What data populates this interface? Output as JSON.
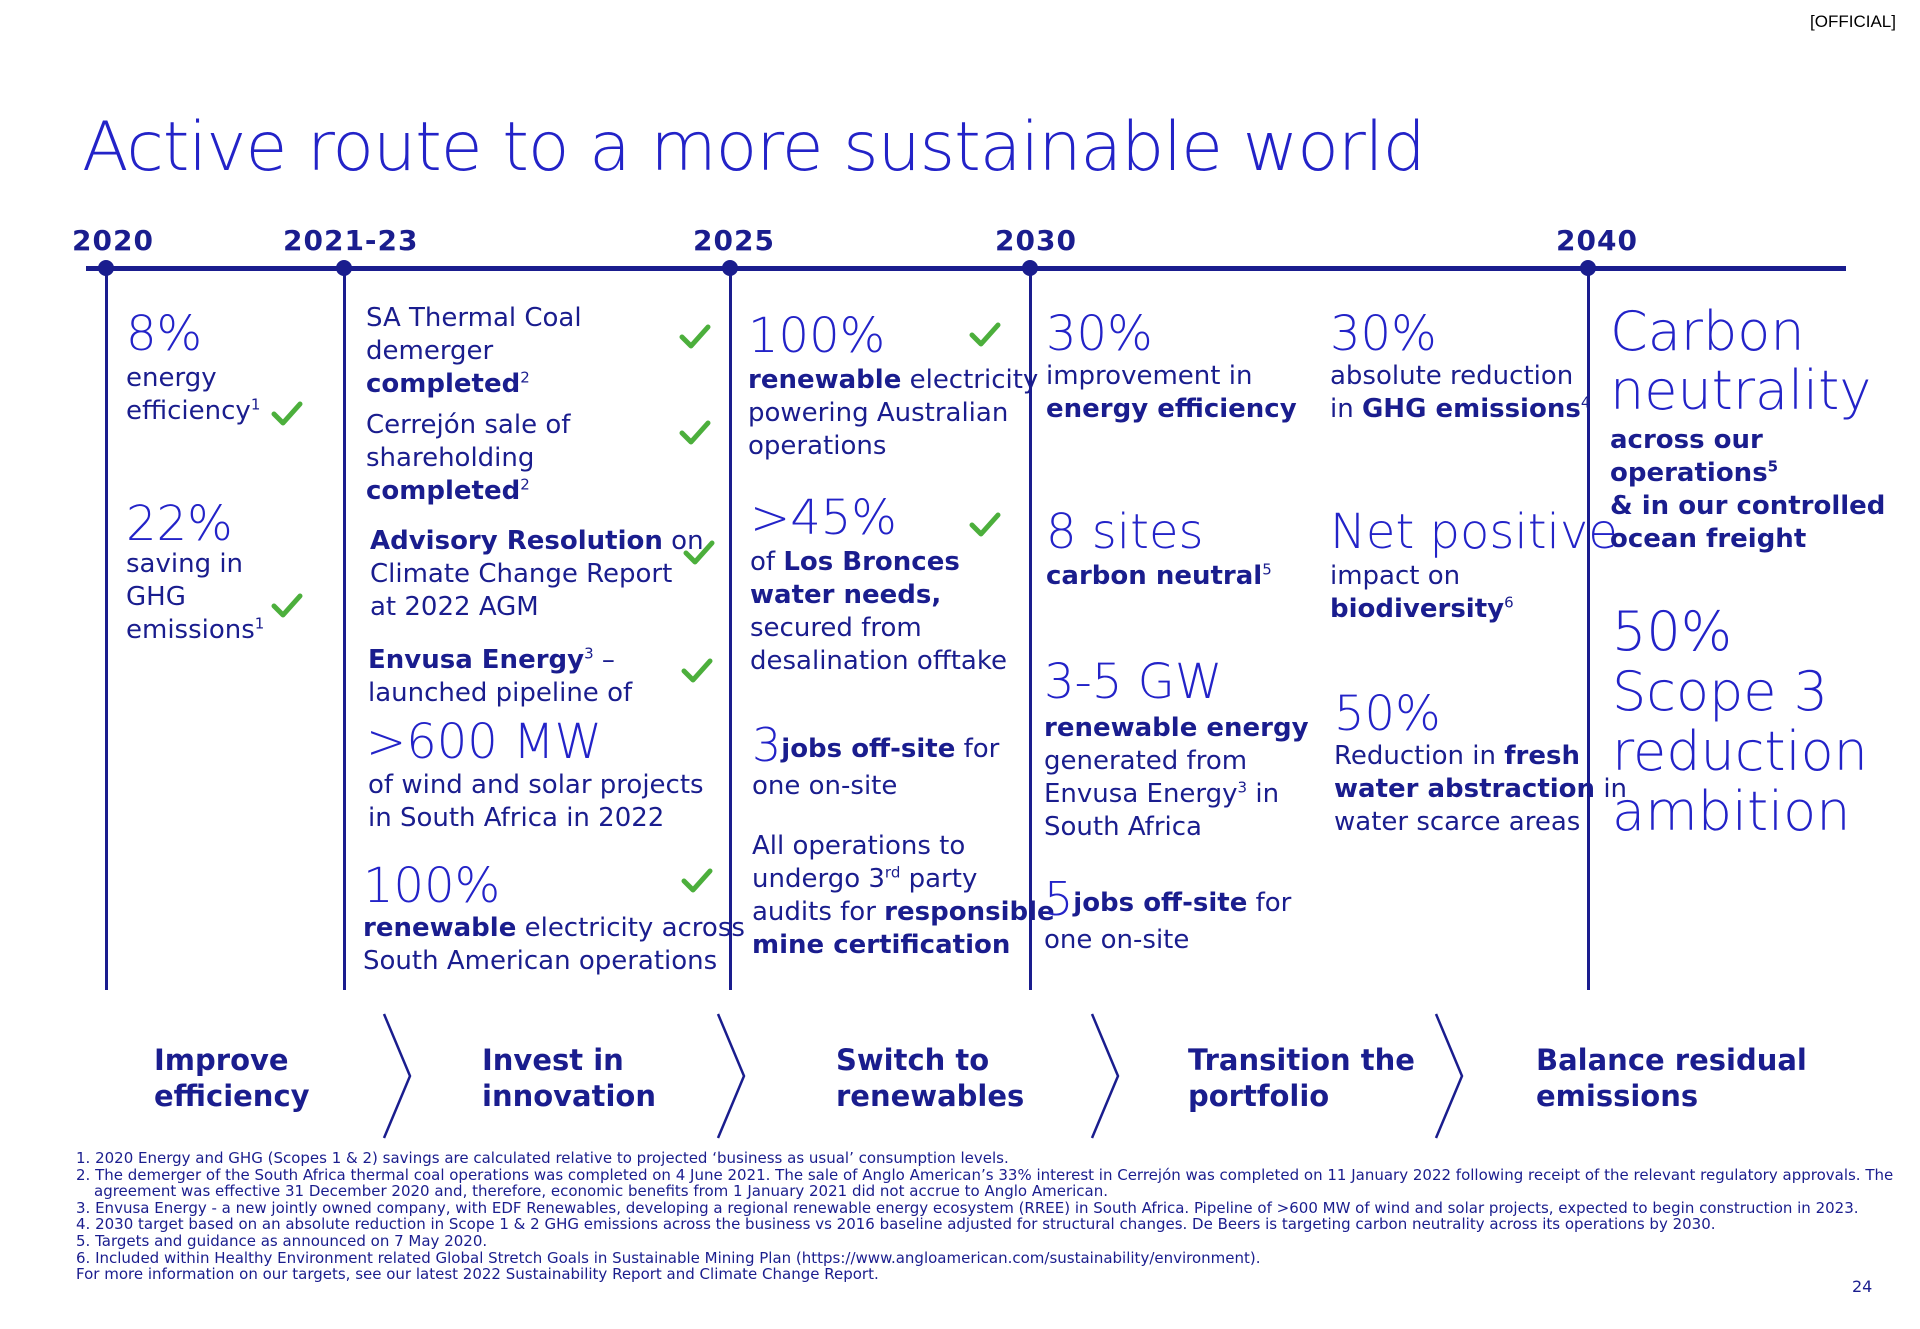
{
  "classification": "[OFFICIAL]",
  "title": "Active route to a more sustainable world",
  "years": [
    "2020",
    "2021-23",
    "2025",
    "2030",
    "2040"
  ],
  "col2020": {
    "pct1": "8%",
    "l1a": "energy",
    "l1b": "efficiency",
    "sup1": "1",
    "pct2": "22%",
    "l2a": "saving in",
    "l2b": "GHG",
    "l2c": "emissions",
    "sup2": "1"
  },
  "col2021": {
    "a1": "SA Thermal Coal",
    "a2": "demerger",
    "a3": "completed",
    "a_sup": "2",
    "b1": "Cerrejón sale of",
    "b2": "shareholding",
    "b3": "completed",
    "b_sup": "2",
    "c1_bold": "Advisory Resolution",
    "c1_rest": " on",
    "c2": "Climate Change Report",
    "c3": "at 2022 AGM",
    "d1_bold": "Envusa Energy",
    "d_sup": "3",
    "d1_rest": " –",
    "d2": "launched pipeline of",
    "d_big": ">600 MW",
    "d3": "of wind and solar projects",
    "d4": "in South Africa in 2022",
    "e_big": "100%",
    "e1_bold": "renewable",
    "e1_rest": " electricity across",
    "e2": "South American operations"
  },
  "col2025": {
    "a_big": "100%",
    "a1_bold": "renewable",
    "a1_rest": " electricity",
    "a2": "powering Australian",
    "a3": "operations",
    "b_big": ">45%",
    "b1_plain": "of ",
    "b1_bold": "Los Bronces",
    "b2": "water needs,",
    "b3": "secured from",
    "b4": "desalination offtake",
    "c_big": "3",
    "c1_bold": "jobs off-site",
    "c1_rest": " for",
    "c2": "one on-site",
    "d1": "All operations to",
    "d2a": "undergo 3",
    "d2_sup": "rd",
    "d2b": " party",
    "d3a": "audits for ",
    "d3_bold": "responsible",
    "d4": "mine certification"
  },
  "col2030a": {
    "a_big": "30%",
    "a1": "improvement in",
    "a2": "energy efficiency",
    "b_big": "8 sites",
    "b1": "carbon neutral",
    "b_sup": "5",
    "c_big": "3-5 GW",
    "c1": "renewable energy",
    "c2": "generated from",
    "c3": "Envusa Energy",
    "c_sup": "3",
    "c3_rest": " in",
    "c4": "South Africa",
    "d_big": "5",
    "d1_bold": "jobs off-site",
    "d1_rest": " for",
    "d2": "one on-site"
  },
  "col2030b": {
    "a_big": "30%",
    "a1": "absolute reduction",
    "a2_plain": "in ",
    "a2_bold": "GHG emissions",
    "a_sup": "4",
    "b_big": "Net positive",
    "b1": "impact on",
    "b2": "biodiversity",
    "b_sup": "6",
    "c_big": "50%",
    "c1_plain": "Reduction in ",
    "c1_bold": "fresh",
    "c2_bold": "water abstraction",
    "c2_rest": " in",
    "c3": "water scarce areas"
  },
  "col2040": {
    "a1": "Carbon",
    "a2": "neutrality",
    "b1": "across our",
    "b2": "operations",
    "b_sup": "5",
    "b3": "& in our controlled",
    "b4": "ocean freight",
    "c1": "50%",
    "c2": "Scope 3",
    "c3": "reduction",
    "c4": "ambition"
  },
  "phases": [
    {
      "l1": "Improve",
      "l2": "efficiency"
    },
    {
      "l1": "Invest in",
      "l2": "innovation"
    },
    {
      "l1": "Switch to",
      "l2": "renewables"
    },
    {
      "l1": "Transition the",
      "l2": "portfolio"
    },
    {
      "l1": "Balance residual",
      "l2": "emissions"
    }
  ],
  "footnotes": [
    "1. 2020 Energy and GHG (Scopes 1 & 2) savings are calculated relative to projected ‘business as usual’ consumption levels.",
    "2. The demerger of the South Africa thermal coal operations was completed on 4 June 2021. The sale of Anglo American’s 33% interest in Cerrejón was completed on 11 January 2022 following receipt of the relevant regulatory approvals. The",
    "agreement was effective 31 December 2020 and, therefore, economic benefits from 1 January 2021 did not accrue to Anglo American.",
    "3. Envusa Energy - a new jointly owned company, with  EDF Renewables, developing a regional renewable energy ecosystem (RREE) in South Africa. Pipeline of >600 MW of wind and solar projects, expected to begin construction in 2023.",
    "4. 2030 target based on an absolute reduction in Scope 1 & 2 GHG emissions across the business vs 2016 baseline adjusted for structural changes. De Beers is targeting carbon neutrality across its operations by 2030.",
    "5. Targets and guidance as announced on 7 May 2020.",
    "6. Included within Healthy Environment related Global Stretch Goals in Sustainable Mining Plan (https://www.angloamerican.com/sustainability/environment).",
    "For more information on our targets, see our latest 2022 Sustainability Report and Climate Change Report."
  ],
  "page_number": "24",
  "colors": {
    "navy": "#1a1d8e",
    "blue": "#2323c8",
    "check_green": "#4caf3c"
  }
}
